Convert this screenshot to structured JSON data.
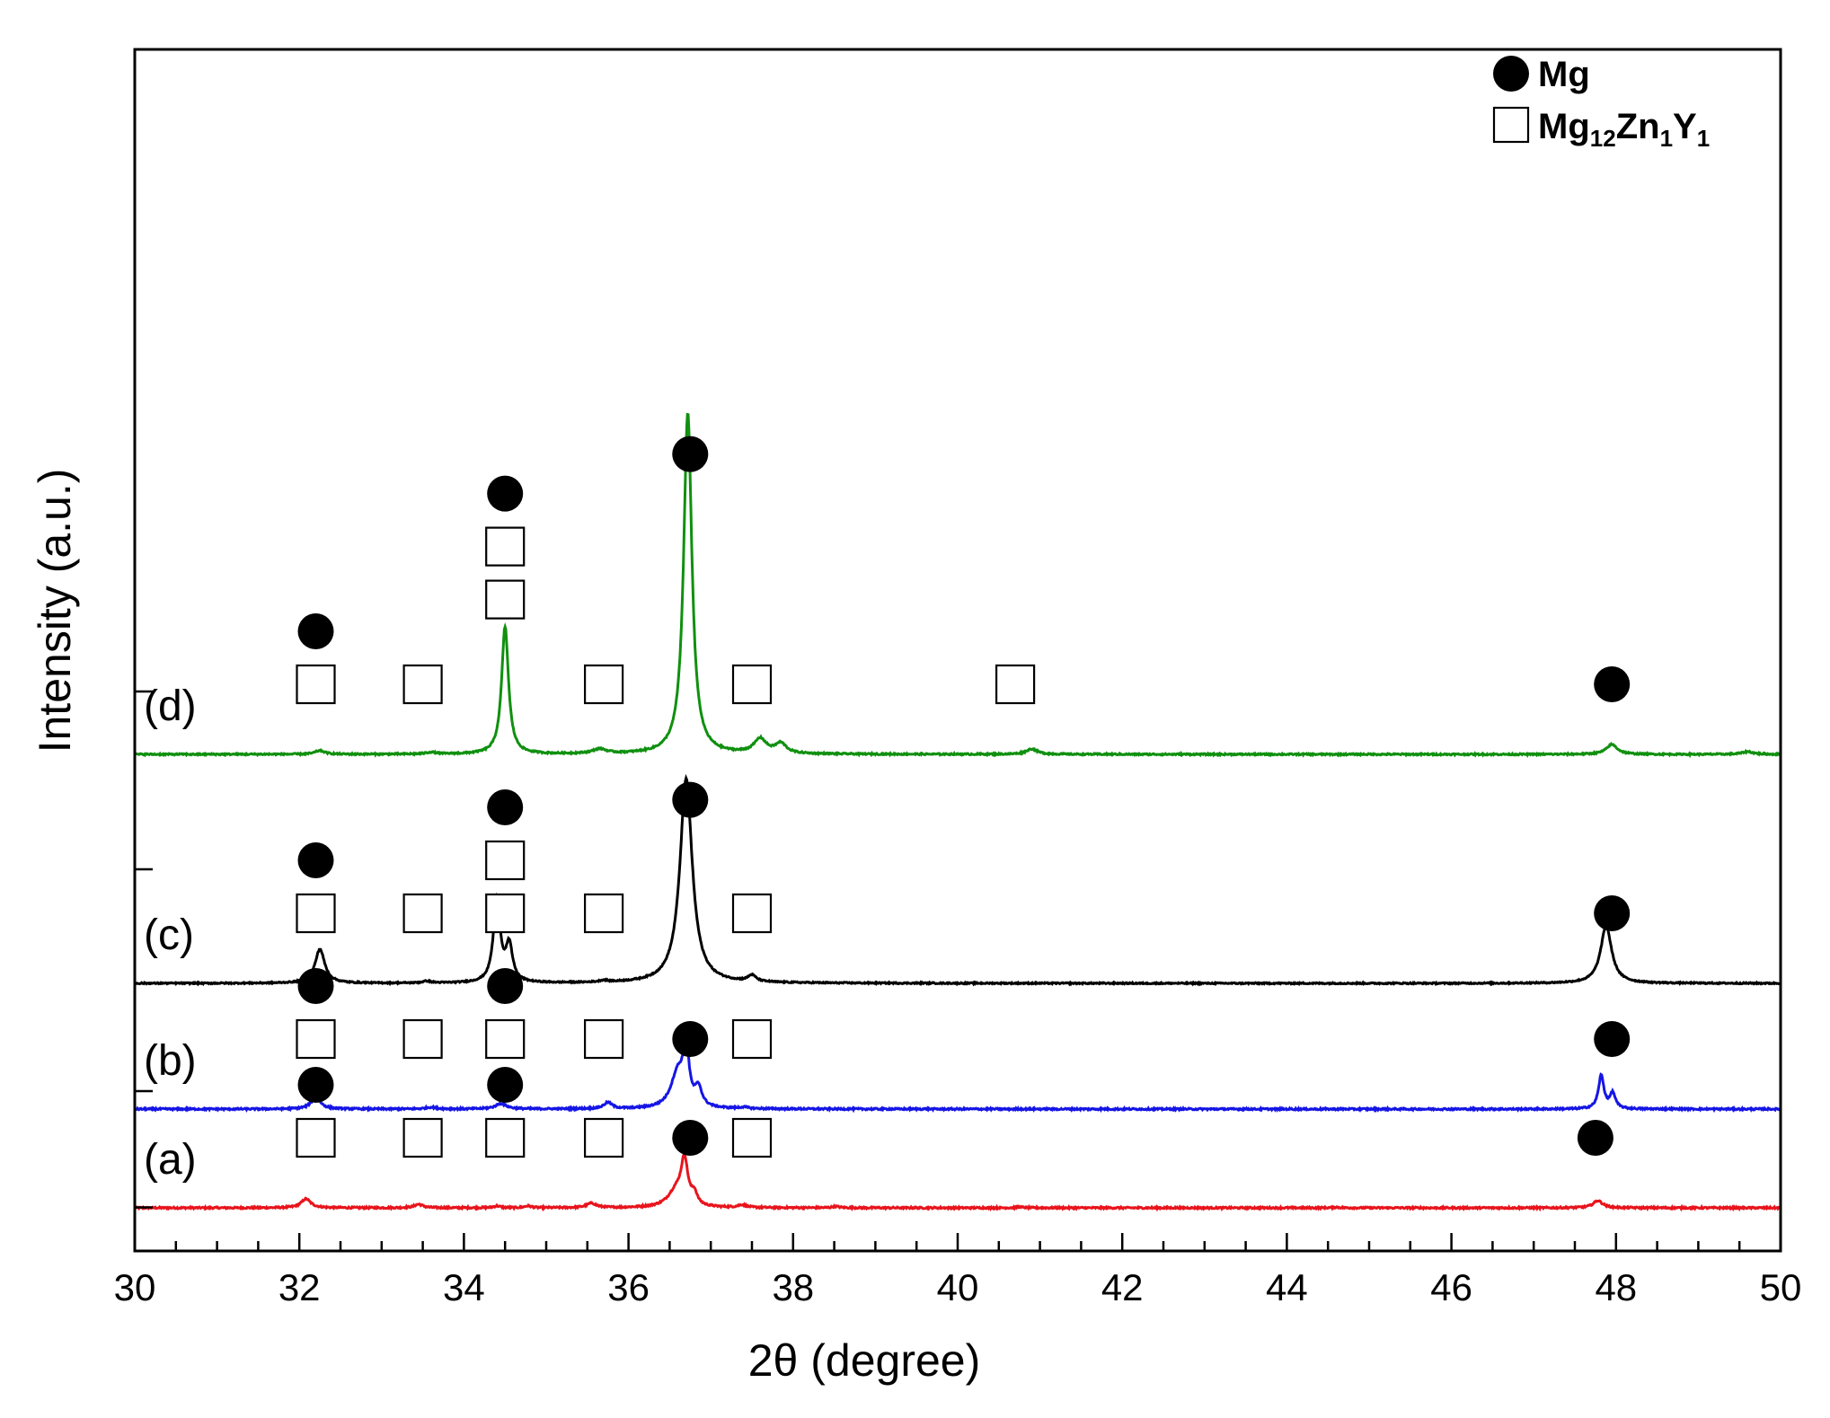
{
  "chart_data": {
    "type": "line",
    "title": "",
    "xlabel": "2θ (degree)",
    "ylabel": "Intensity (a.u.)",
    "xlim": [
      30,
      50
    ],
    "x_ticks": [
      30,
      32,
      34,
      36,
      38,
      40,
      42,
      44,
      46,
      48,
      50
    ],
    "y_ticks_shown": false,
    "grid": false,
    "legend": {
      "position": "top-right",
      "entries": [
        {
          "symbol": "filled-circle",
          "label": "Mg",
          "subscripts": []
        },
        {
          "symbol": "open-square",
          "label": "Mg12Zn1Y1",
          "parts": [
            "Mg",
            "12",
            "Zn",
            "1",
            "Y",
            "1"
          ]
        }
      ]
    },
    "series": [
      {
        "name": "(a)",
        "color": "#e8141c",
        "offset": 0,
        "ref_tick": 0.5,
        "noise": 0.9,
        "peaks": [
          {
            "x": 32.08,
            "h": 10,
            "w": 0.07
          },
          {
            "x": 33.45,
            "h": 4,
            "w": 0.06
          },
          {
            "x": 34.4,
            "h": 2,
            "w": 0.05
          },
          {
            "x": 34.78,
            "h": 2,
            "w": 0.05
          },
          {
            "x": 35.55,
            "h": 5,
            "w": 0.07
          },
          {
            "x": 36.58,
            "h": 18,
            "w": 0.12
          },
          {
            "x": 36.68,
            "h": 48,
            "w": 0.05
          },
          {
            "x": 36.8,
            "h": 12,
            "w": 0.04
          },
          {
            "x": 37.38,
            "h": 3,
            "w": 0.06
          },
          {
            "x": 38.52,
            "h": 1.5,
            "w": 0.05
          },
          {
            "x": 40.75,
            "h": 1,
            "w": 0.05
          },
          {
            "x": 44.6,
            "h": 0.8,
            "w": 0.05
          },
          {
            "x": 47.78,
            "h": 8,
            "w": 0.07
          }
        ],
        "markers": [
          {
            "x": 32.2,
            "symbols": [
              "square",
              "circle"
            ]
          },
          {
            "x": 33.5,
            "symbols": [
              "square"
            ]
          },
          {
            "x": 34.5,
            "symbols": [
              "square",
              "circle"
            ]
          },
          {
            "x": 35.7,
            "symbols": [
              "square"
            ]
          },
          {
            "x": 36.75,
            "symbols": [
              "circle"
            ]
          },
          {
            "x": 37.5,
            "symbols": [
              "square"
            ]
          },
          {
            "x": 47.75,
            "symbols": [
              "circle"
            ]
          }
        ]
      },
      {
        "name": "(b)",
        "color": "#1515e6",
        "offset": 110,
        "ref_tick": 130,
        "noise": 0.9,
        "peaks": [
          {
            "x": 32.2,
            "h": 13,
            "w": 0.07
          },
          {
            "x": 33.6,
            "h": 2,
            "w": 0.07
          },
          {
            "x": 34.45,
            "h": 6,
            "w": 0.08
          },
          {
            "x": 35.75,
            "h": 7,
            "w": 0.06
          },
          {
            "x": 36.6,
            "h": 40,
            "w": 0.1
          },
          {
            "x": 36.7,
            "h": 62,
            "w": 0.04
          },
          {
            "x": 36.85,
            "h": 20,
            "w": 0.05
          },
          {
            "x": 37.4,
            "h": 1.5,
            "w": 0.06
          },
          {
            "x": 47.82,
            "h": 37,
            "w": 0.04
          },
          {
            "x": 47.96,
            "h": 17,
            "w": 0.04
          }
        ],
        "markers": [
          {
            "x": 32.2,
            "symbols": [
              "square",
              "circle"
            ]
          },
          {
            "x": 33.5,
            "symbols": [
              "square"
            ]
          },
          {
            "x": 34.5,
            "symbols": [
              "square",
              "circle"
            ]
          },
          {
            "x": 35.7,
            "symbols": [
              "square"
            ]
          },
          {
            "x": 36.75,
            "symbols": [
              "circle"
            ]
          },
          {
            "x": 37.5,
            "symbols": [
              "square"
            ]
          },
          {
            "x": 47.95,
            "symbols": [
              "circle"
            ]
          }
        ]
      },
      {
        "name": "(c)",
        "color": "#000000",
        "offset": 250,
        "ref_tick": 377,
        "noise": 0.7,
        "peaks": [
          {
            "x": 32.25,
            "h": 38,
            "w": 0.07
          },
          {
            "x": 33.55,
            "h": 2,
            "w": 0.06
          },
          {
            "x": 34.4,
            "h": 92,
            "w": 0.05
          },
          {
            "x": 34.55,
            "h": 40,
            "w": 0.05
          },
          {
            "x": 35.7,
            "h": 2,
            "w": 0.06
          },
          {
            "x": 36.7,
            "h": 228,
            "w": 0.09
          },
          {
            "x": 37.5,
            "h": 7,
            "w": 0.06
          },
          {
            "x": 47.88,
            "h": 64,
            "w": 0.08
          }
        ],
        "markers": [
          {
            "x": 32.2,
            "symbols": [
              "square",
              "circle"
            ]
          },
          {
            "x": 33.5,
            "symbols": [
              "square"
            ]
          },
          {
            "x": 34.5,
            "symbols": [
              "square",
              "square",
              "circle"
            ]
          },
          {
            "x": 35.7,
            "symbols": [
              "square"
            ]
          },
          {
            "x": 36.75,
            "symbols": [
              "circle"
            ]
          },
          {
            "x": 37.5,
            "symbols": [
              "square"
            ]
          },
          {
            "x": 47.95,
            "symbols": [
              "circle"
            ]
          }
        ]
      },
      {
        "name": "(d)",
        "color": "#10900f",
        "offset": 505,
        "ref_tick": 575,
        "noise": 0.8,
        "peaks": [
          {
            "x": 32.25,
            "h": 4,
            "w": 0.07
          },
          {
            "x": 33.6,
            "h": 2,
            "w": 0.07
          },
          {
            "x": 34.5,
            "h": 142,
            "w": 0.05
          },
          {
            "x": 35.65,
            "h": 5,
            "w": 0.1
          },
          {
            "x": 36.72,
            "h": 380,
            "w": 0.06
          },
          {
            "x": 37.6,
            "h": 16,
            "w": 0.09
          },
          {
            "x": 37.85,
            "h": 11,
            "w": 0.08
          },
          {
            "x": 40.9,
            "h": 6,
            "w": 0.08
          },
          {
            "x": 47.95,
            "h": 11,
            "w": 0.08
          },
          {
            "x": 49.6,
            "h": 3,
            "w": 0.08
          }
        ],
        "markers": [
          {
            "x": 32.2,
            "symbols": [
              "square",
              "circle"
            ]
          },
          {
            "x": 33.5,
            "symbols": [
              "square"
            ]
          },
          {
            "x": 34.5,
            "symbols": [
              "square",
              "square",
              "circle"
            ]
          },
          {
            "x": 35.7,
            "symbols": [
              "square"
            ]
          },
          {
            "x": 36.75,
            "symbols": [
              "circle"
            ]
          },
          {
            "x": 37.5,
            "symbols": [
              "square"
            ]
          },
          {
            "x": 40.7,
            "symbols": [
              "square"
            ]
          },
          {
            "x": 47.95,
            "symbols": [
              "circle"
            ]
          }
        ]
      }
    ]
  }
}
